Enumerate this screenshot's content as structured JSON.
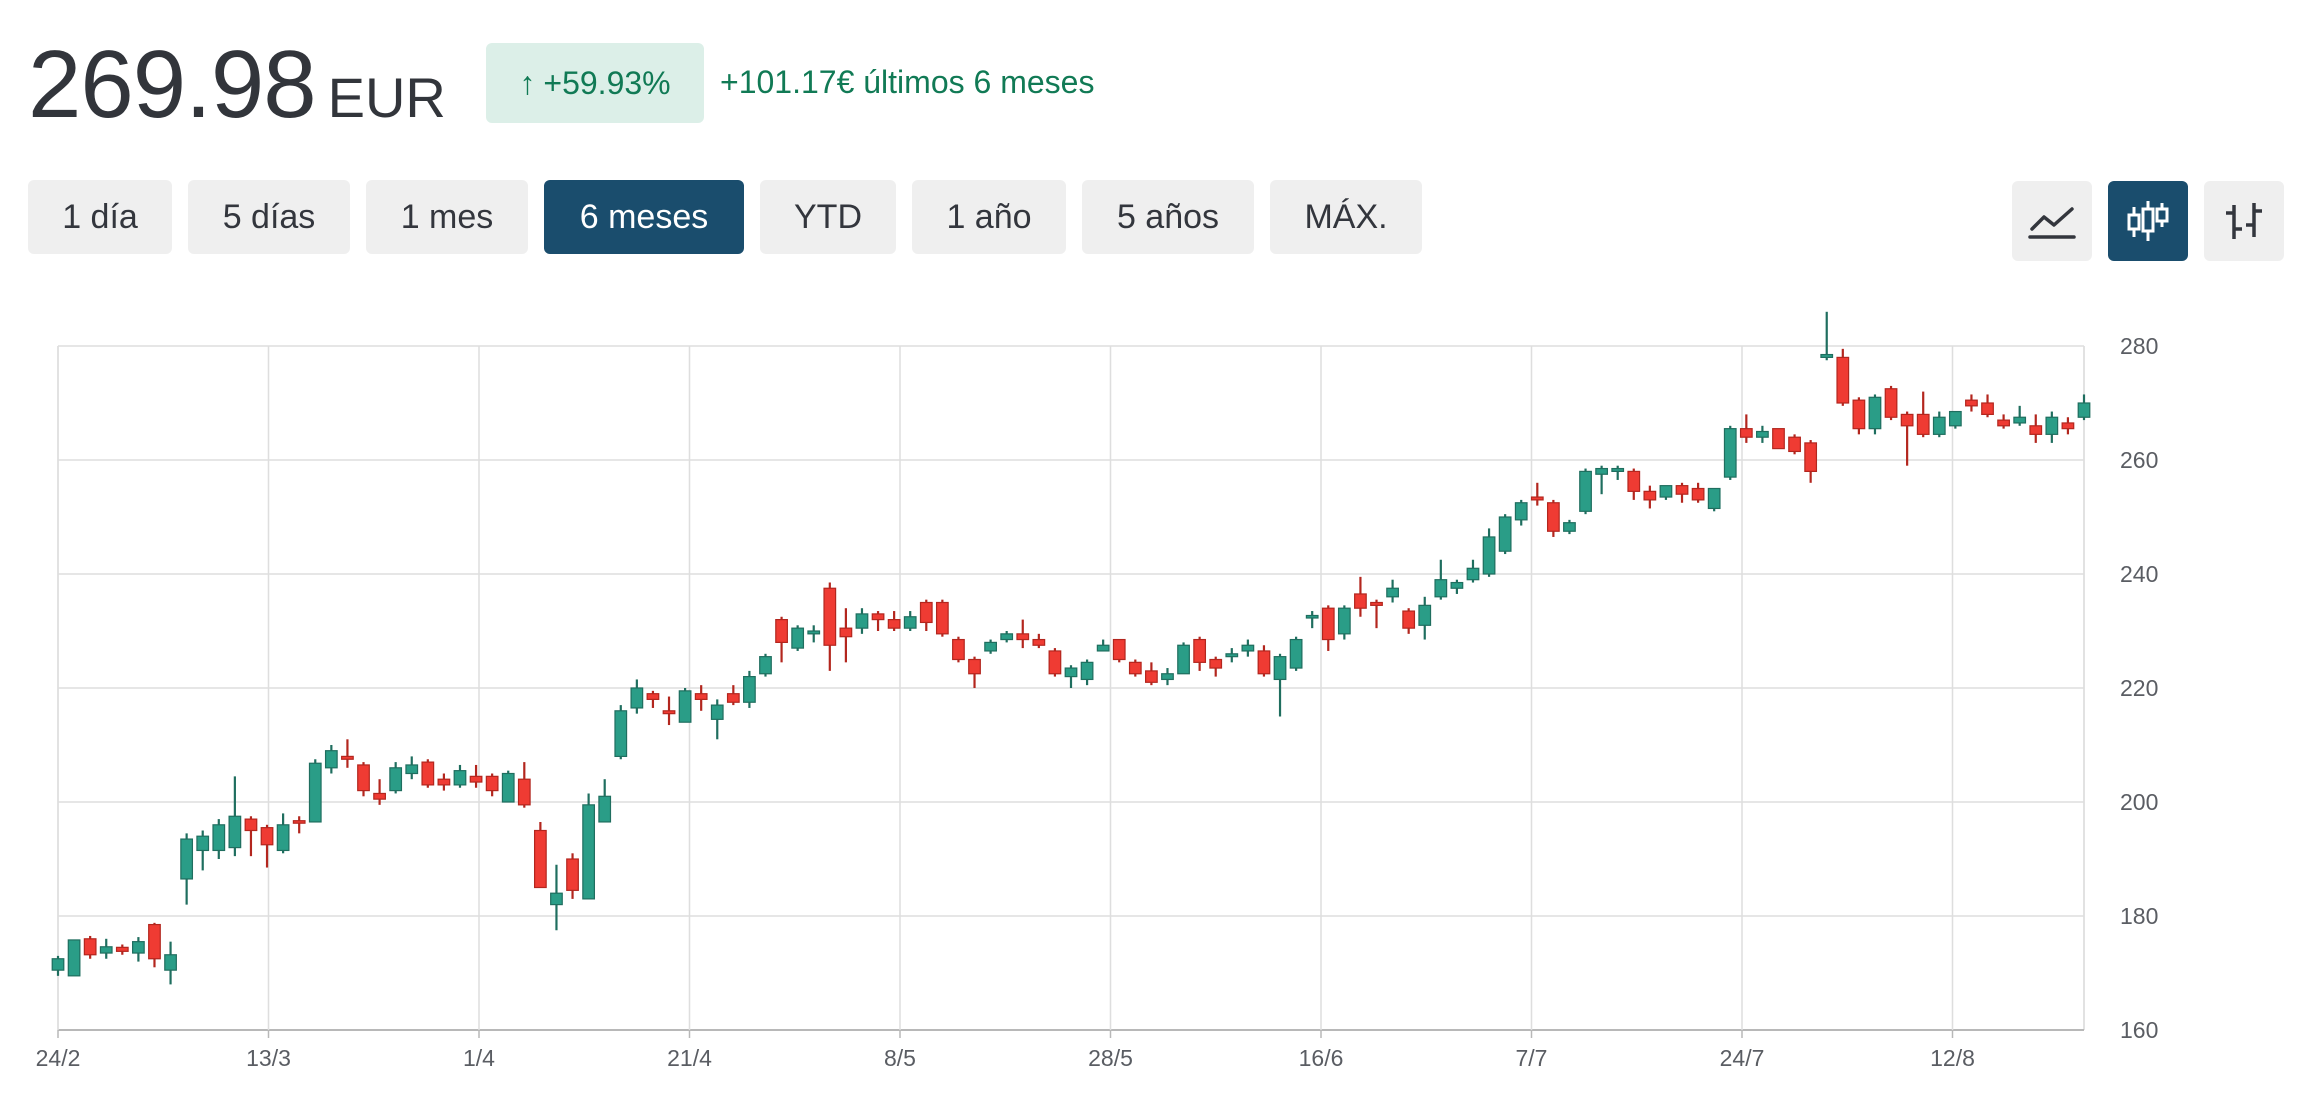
{
  "header": {
    "price": "269.98",
    "currency": "EUR",
    "change_arrow": "↑",
    "change_pct": "+59.93%",
    "change_text": "+101.17€ últimos 6 meses",
    "up_color": "#117a55",
    "badge_bg": "#dcefe8"
  },
  "ranges": [
    {
      "label": "1 día"
    },
    {
      "label": "5 días"
    },
    {
      "label": "1 mes"
    },
    {
      "label": "6 meses",
      "active": true
    },
    {
      "label": "YTD"
    },
    {
      "label": "1 año"
    },
    {
      "label": "5 años"
    },
    {
      "label": "MÁX."
    }
  ],
  "chart_types": [
    {
      "icon": "line-chart-icon",
      "active": false
    },
    {
      "icon": "candlestick-chart-icon",
      "active": true
    },
    {
      "icon": "ohlc-bar-chart-icon",
      "active": false
    }
  ],
  "chart_data": {
    "type": "candlestick",
    "ylim": [
      160,
      280
    ],
    "yticks": [
      160,
      180,
      200,
      220,
      240,
      260,
      280
    ],
    "xtick_labels": [
      "24/2",
      "13/3",
      "1/4",
      "21/4",
      "8/5",
      "28/5",
      "16/6",
      "7/7",
      "24/7",
      "12/8"
    ],
    "grid": true,
    "up_color": "#2a9d87",
    "down_color": "#ef3b33",
    "candles": [
      [
        170.5,
        173,
        169.5,
        172.5
      ],
      [
        169.5,
        175.8,
        169.5,
        175.8
      ],
      [
        176,
        176.5,
        172.5,
        173.2
      ],
      [
        173.5,
        176,
        172.5,
        174.6
      ],
      [
        174.5,
        175,
        173.2,
        173.8
      ],
      [
        173.5,
        176.3,
        172,
        175.5
      ],
      [
        178.5,
        178.8,
        171,
        172.5
      ],
      [
        170.5,
        175.5,
        168,
        173.2
      ],
      [
        186.5,
        194.5,
        182,
        193.5
      ],
      [
        191.5,
        195,
        188,
        194
      ],
      [
        191.5,
        197,
        190,
        196
      ],
      [
        192,
        204.5,
        190.5,
        197.5
      ],
      [
        197,
        197.5,
        190.5,
        195
      ],
      [
        195.5,
        196,
        188.5,
        192.5
      ],
      [
        191.5,
        198,
        191,
        196
      ],
      [
        196.5,
        197.5,
        194.5,
        196.3
      ],
      [
        196.5,
        207.5,
        196.5,
        206.8
      ],
      [
        206,
        210,
        205,
        209
      ],
      [
        208,
        211,
        206,
        207.5
      ],
      [
        206.5,
        207,
        201,
        202
      ],
      [
        201.5,
        204,
        199.5,
        200.5
      ],
      [
        202,
        207,
        201.5,
        206
      ],
      [
        205,
        208,
        204,
        206.5
      ],
      [
        207,
        207.5,
        202.5,
        203
      ],
      [
        204,
        205,
        202,
        203
      ],
      [
        203,
        206.5,
        202.5,
        205.5
      ],
      [
        204.5,
        206.5,
        202.5,
        203.5
      ],
      [
        204.5,
        205,
        201,
        202
      ],
      [
        200,
        205.5,
        200,
        205
      ],
      [
        204,
        207,
        199,
        199.5
      ],
      [
        195,
        196.5,
        185,
        185
      ],
      [
        182,
        189,
        177.5,
        184
      ],
      [
        190,
        191,
        183,
        184.5
      ],
      [
        183,
        201.5,
        183,
        199.5
      ],
      [
        196.5,
        204,
        196.5,
        201
      ],
      [
        208,
        217,
        207.5,
        216
      ],
      [
        216.5,
        221.5,
        215.5,
        220
      ],
      [
        219,
        219.5,
        216.5,
        218
      ],
      [
        216,
        218.5,
        213.5,
        215.5
      ],
      [
        214,
        220,
        214,
        219.5
      ],
      [
        219,
        220.5,
        216,
        218
      ],
      [
        214.5,
        218,
        211,
        217
      ],
      [
        219,
        220.5,
        217,
        217.5
      ],
      [
        217.5,
        223,
        216.5,
        222
      ],
      [
        222.5,
        226,
        222,
        225.5
      ],
      [
        232,
        232.5,
        224.5,
        228
      ],
      [
        227,
        231,
        226.5,
        230.5
      ],
      [
        229.5,
        231,
        228,
        230
      ],
      [
        237.5,
        238.5,
        223,
        227.5
      ],
      [
        230.5,
        234,
        224.5,
        229
      ],
      [
        230.5,
        234,
        229.5,
        233
      ],
      [
        233,
        233.5,
        230,
        232
      ],
      [
        232,
        233.5,
        230,
        230.5
      ],
      [
        230.5,
        233.5,
        230,
        232.5
      ],
      [
        235,
        235.5,
        230,
        231.5
      ],
      [
        235,
        235.5,
        229,
        229.5
      ],
      [
        228.5,
        229,
        224.5,
        225
      ],
      [
        225,
        225.5,
        220,
        222.5
      ],
      [
        226.5,
        228.5,
        226,
        228
      ],
      [
        228.5,
        230,
        228,
        229.5
      ],
      [
        229.5,
        232,
        227,
        228.5
      ],
      [
        228.5,
        229.5,
        227,
        227.5
      ],
      [
        226.5,
        227,
        222,
        222.5
      ],
      [
        222,
        224,
        220,
        223.5
      ],
      [
        221.5,
        225,
        220.5,
        224.5
      ],
      [
        226.5,
        228.5,
        226.5,
        227.5
      ],
      [
        228.5,
        228.5,
        224.5,
        225
      ],
      [
        224.5,
        225,
        222,
        222.5
      ],
      [
        223,
        224.5,
        220.5,
        221
      ],
      [
        221.5,
        223.5,
        220.5,
        222.5
      ],
      [
        222.5,
        228,
        222.5,
        227.5
      ],
      [
        228.5,
        229,
        223,
        224.5
      ],
      [
        225,
        225.5,
        222,
        223.5
      ],
      [
        225.5,
        227,
        224.5,
        226
      ],
      [
        226.5,
        228.5,
        225.5,
        227.5
      ],
      [
        226.5,
        227.5,
        222,
        222.5
      ],
      [
        221.5,
        226,
        215,
        225.5
      ],
      [
        223.5,
        229,
        223,
        228.5
      ],
      [
        232.5,
        233.5,
        230.5,
        232.5
      ],
      [
        234,
        234.5,
        226.5,
        228.5
      ],
      [
        229.5,
        234.5,
        228.5,
        234
      ],
      [
        236.5,
        239.5,
        232.5,
        234
      ],
      [
        235,
        235.5,
        230.5,
        234.5
      ],
      [
        236,
        239,
        235,
        237.5
      ],
      [
        233.5,
        234,
        229.5,
        230.5
      ],
      [
        231,
        236,
        228.5,
        234.5
      ],
      [
        236,
        242.5,
        235.5,
        239
      ],
      [
        237.5,
        239,
        236.5,
        238.5
      ],
      [
        239,
        242.5,
        238.5,
        241
      ],
      [
        240,
        248,
        239.5,
        246.5
      ],
      [
        244,
        250.5,
        243.5,
        250
      ],
      [
        249.5,
        253,
        248.5,
        252.5
      ],
      [
        253.5,
        256,
        252,
        253
      ],
      [
        252.5,
        253,
        246.5,
        247.5
      ],
      [
        247.5,
        249.5,
        247,
        249
      ],
      [
        251,
        258.5,
        250.5,
        258
      ],
      [
        257.5,
        259,
        254,
        258.5
      ],
      [
        258,
        259,
        256.5,
        258.5
      ],
      [
        258,
        258.5,
        253,
        254.5
      ],
      [
        254.5,
        255.5,
        251.5,
        253
      ],
      [
        253.5,
        255.5,
        253,
        255.5
      ],
      [
        255.5,
        256,
        252.5,
        254
      ],
      [
        255,
        256,
        252.5,
        253
      ],
      [
        251.5,
        255,
        251,
        255
      ],
      [
        257,
        266,
        256.5,
        265.5
      ],
      [
        265.5,
        268,
        263,
        264
      ],
      [
        264,
        266,
        263,
        265
      ],
      [
        265.5,
        265.5,
        262,
        262
      ],
      [
        264,
        264.5,
        261,
        261.5
      ],
      [
        263,
        263.5,
        256,
        258
      ],
      [
        278,
        286,
        277.5,
        278.5
      ],
      [
        278,
        279.5,
        269.5,
        270
      ],
      [
        270.5,
        271,
        264.5,
        265.5
      ],
      [
        265.5,
        271.5,
        264.5,
        271
      ],
      [
        272.5,
        273,
        267,
        267.5
      ],
      [
        268,
        268.5,
        259,
        266
      ],
      [
        268,
        272,
        264,
        264.5
      ],
      [
        264.5,
        268.5,
        264,
        267.5
      ],
      [
        266,
        268.5,
        265.5,
        268.5
      ],
      [
        270.5,
        271.5,
        268.5,
        269.5
      ],
      [
        270,
        271.5,
        267.5,
        268
      ],
      [
        267,
        268,
        265.5,
        266
      ],
      [
        266.5,
        269.5,
        266,
        267.5
      ],
      [
        266,
        268,
        263,
        264.5
      ],
      [
        264.5,
        268.5,
        263,
        267.5
      ],
      [
        266.5,
        267.5,
        264.5,
        265.5
      ],
      [
        267.5,
        271.5,
        267,
        270
      ]
    ]
  }
}
